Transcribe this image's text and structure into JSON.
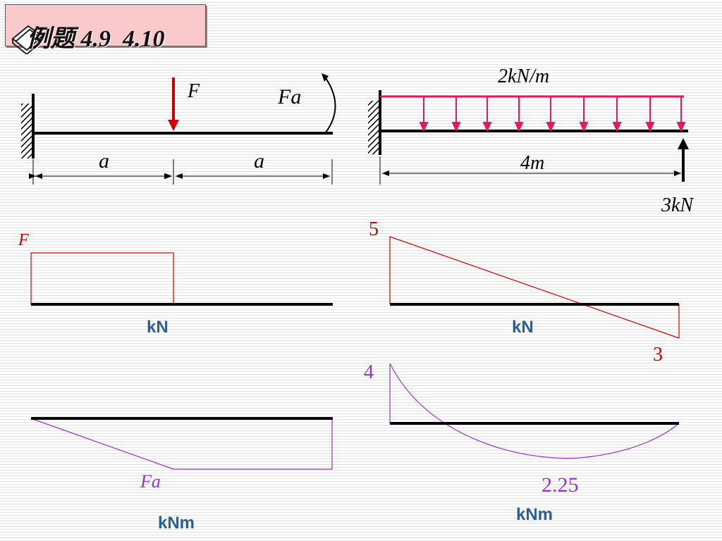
{
  "title": "例题 4.9  4.10",
  "left_beam": {
    "force_label": "F",
    "moment_label": "Fa",
    "dim_label_1": "a",
    "dim_label_2": "a"
  },
  "right_beam": {
    "load_label": "2kN/m",
    "length_label": "4m",
    "reaction_label": "3kN"
  },
  "left_shear": {
    "label": "F",
    "unit": "kN"
  },
  "right_shear": {
    "max_label": "5",
    "min_label": "3",
    "unit": "kN"
  },
  "left_moment": {
    "label": "Fa",
    "unit": "kNm"
  },
  "right_moment": {
    "max_label": "4",
    "min_label": "2.25",
    "unit": "kNm"
  },
  "colors": {
    "shear": "#cc0000",
    "moment": "#9933cc",
    "distributed_load": "#e6175e",
    "unit_text": "#2b5f93"
  }
}
